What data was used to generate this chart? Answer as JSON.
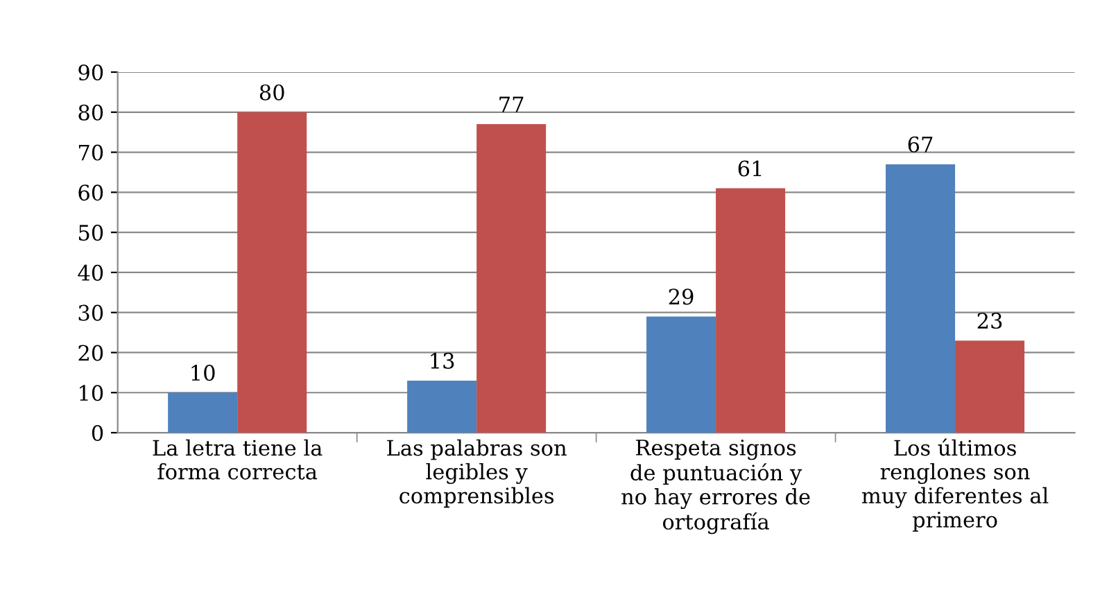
{
  "chart_data": {
    "type": "bar",
    "categories": [
      "La letra tiene la\nforma correcta",
      "Las palabras son\nlegibles y\ncomprensibles",
      "Respeta signos\nde puntuación y\nno hay errores de\nortografía",
      "Los últimos\nrenglones son\nmuy diferentes al\nprimero"
    ],
    "series": [
      {
        "color": "#4f81bd",
        "values": [
          10,
          13,
          29,
          67
        ]
      },
      {
        "color": "#c0504d",
        "values": [
          80,
          77,
          61,
          23
        ]
      }
    ],
    "ylim": [
      0,
      90
    ],
    "yticks": [
      0,
      10,
      20,
      30,
      40,
      50,
      60,
      70,
      80,
      90
    ],
    "grid": "y",
    "data_labels": true
  }
}
